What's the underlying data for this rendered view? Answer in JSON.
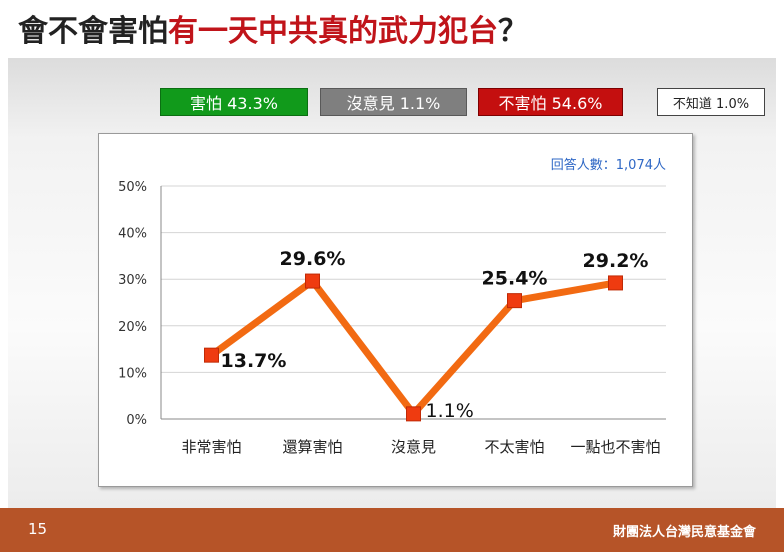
{
  "title": {
    "prefix": "會不會害怕",
    "highlight": "有一天中共真的武力犯台",
    "suffix": "？"
  },
  "legend": {
    "afraid": "害怕 43.3%",
    "no_opinion": "沒意見 1.1%",
    "not_afraid": "不害怕 54.6%",
    "unknown": "不知道 1.0%"
  },
  "colors": {
    "line": "#f26a12",
    "marker": "#ef3b10",
    "afraid": "#119a1b",
    "no_opinion": "#7f7f7f",
    "not_afraid": "#c40f0f",
    "note": "#2e67c5",
    "footer": "#b65428"
  },
  "chart_data": {
    "type": "line",
    "categories": [
      "非常害怕",
      "還算害怕",
      "沒意見",
      "不太害怕",
      "一點也不害怕"
    ],
    "values": [
      13.7,
      29.6,
      1.1,
      25.4,
      29.2
    ],
    "data_labels": [
      "13.7%",
      "29.6%",
      "1.1%",
      "25.4%",
      "29.2%"
    ],
    "y_ticks": [
      "0%",
      "10%",
      "20%",
      "30%",
      "40%",
      "50%"
    ],
    "ylim": [
      0,
      50
    ],
    "grid": "horizontal",
    "note": "回答人數：1,074人"
  },
  "footer": {
    "page": "15",
    "org": "財團法人台灣民意基金會"
  }
}
